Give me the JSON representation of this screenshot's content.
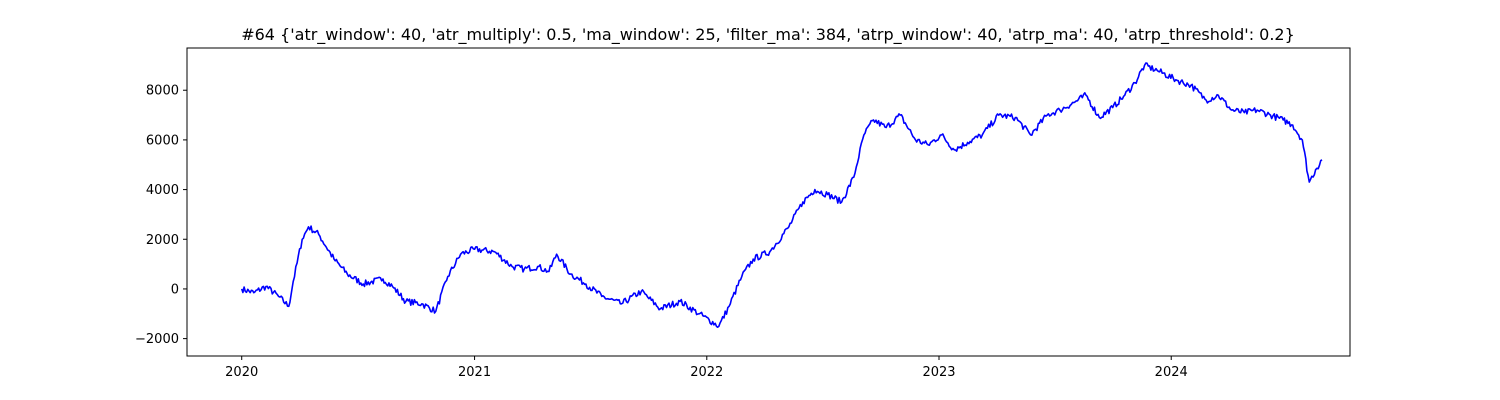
{
  "chart_data": {
    "type": "line",
    "title": "#64 {'atr_window': 40, 'atr_multiply': 0.5, 'ma_window': 25, 'filter_ma': 384, 'atrp_window': 40, 'atrp_ma': 40, 'atrp_threshold': 0.2}",
    "xlabel": "",
    "ylabel": "",
    "grid": false,
    "legend": "none",
    "xlim": [
      "2019-10-07",
      "2024-10-08"
    ],
    "ylim": [
      -2700,
      9700
    ],
    "x_ticks": [
      "2020-01-01",
      "2021-01-01",
      "2022-01-01",
      "2023-01-01",
      "2024-01-01"
    ],
    "x_tick_labels": [
      "2020",
      "2021",
      "2022",
      "2023",
      "2024"
    ],
    "y_ticks": [
      -2000,
      0,
      2000,
      4000,
      6000,
      8000
    ],
    "y_tick_labels": [
      "−2000",
      "0",
      "2000",
      "4000",
      "6000",
      "8000"
    ],
    "series": [
      {
        "color": "#0000ff",
        "x": [
          "2020-01-01",
          "2020-01-20",
          "2020-02-08",
          "2020-02-28",
          "2020-03-15",
          "2020-03-22",
          "2020-04-05",
          "2020-04-15",
          "2020-05-01",
          "2020-05-25",
          "2020-06-15",
          "2020-07-10",
          "2020-08-10",
          "2020-08-25",
          "2020-09-15",
          "2020-10-10",
          "2020-11-01",
          "2020-11-20",
          "2020-12-10",
          "2021-01-01",
          "2021-02-01",
          "2021-03-01",
          "2021-03-20",
          "2021-04-10",
          "2021-04-28",
          "2021-05-10",
          "2021-06-01",
          "2021-06-25",
          "2021-07-20",
          "2021-08-20",
          "2021-09-20",
          "2021-10-20",
          "2021-11-20",
          "2021-12-20",
          "2022-01-20",
          "2022-02-05",
          "2022-02-25",
          "2022-03-15",
          "2022-04-10",
          "2022-05-10",
          "2022-06-01",
          "2022-06-20",
          "2022-07-10",
          "2022-08-01",
          "2022-08-20",
          "2022-09-05",
          "2022-09-20",
          "2022-10-10",
          "2022-11-01",
          "2022-11-25",
          "2022-12-15",
          "2023-01-05",
          "2023-01-25",
          "2023-02-15",
          "2023-03-10",
          "2023-04-05",
          "2023-05-01",
          "2023-05-25",
          "2023-06-20",
          "2023-07-10",
          "2023-08-01",
          "2023-08-20",
          "2023-09-10",
          "2023-10-01",
          "2023-10-20",
          "2023-11-05",
          "2023-11-20",
          "2023-12-10",
          "2024-01-10",
          "2024-02-01",
          "2024-02-25",
          "2024-03-15",
          "2024-04-05",
          "2024-04-25",
          "2024-05-15",
          "2024-06-05",
          "2024-06-25",
          "2024-07-10",
          "2024-07-25",
          "2024-08-05",
          "2024-08-15",
          "2024-08-25"
        ],
        "values": [
          0,
          -150,
          100,
          -300,
          -700,
          300,
          2000,
          2500,
          2200,
          1200,
          600,
          200,
          400,
          100,
          -500,
          -600,
          -900,
          500,
          1400,
          1600,
          1500,
          900,
          800,
          900,
          700,
          1400,
          600,
          200,
          -300,
          -600,
          -100,
          -800,
          -500,
          -1000,
          -1500,
          -700,
          500,
          1200,
          1500,
          2500,
          3500,
          4000,
          3800,
          3500,
          4500,
          6200,
          6800,
          6500,
          7000,
          6000,
          5800,
          6200,
          5600,
          5900,
          6200,
          7000,
          6900,
          6200,
          7000,
          7200,
          7500,
          7800,
          6900,
          7300,
          7800,
          8300,
          9000,
          8800,
          8400,
          8200,
          7600,
          7800,
          7200,
          7100,
          7200,
          7000,
          6800,
          6600,
          6000,
          4300,
          4800,
          5200
        ]
      }
    ]
  }
}
